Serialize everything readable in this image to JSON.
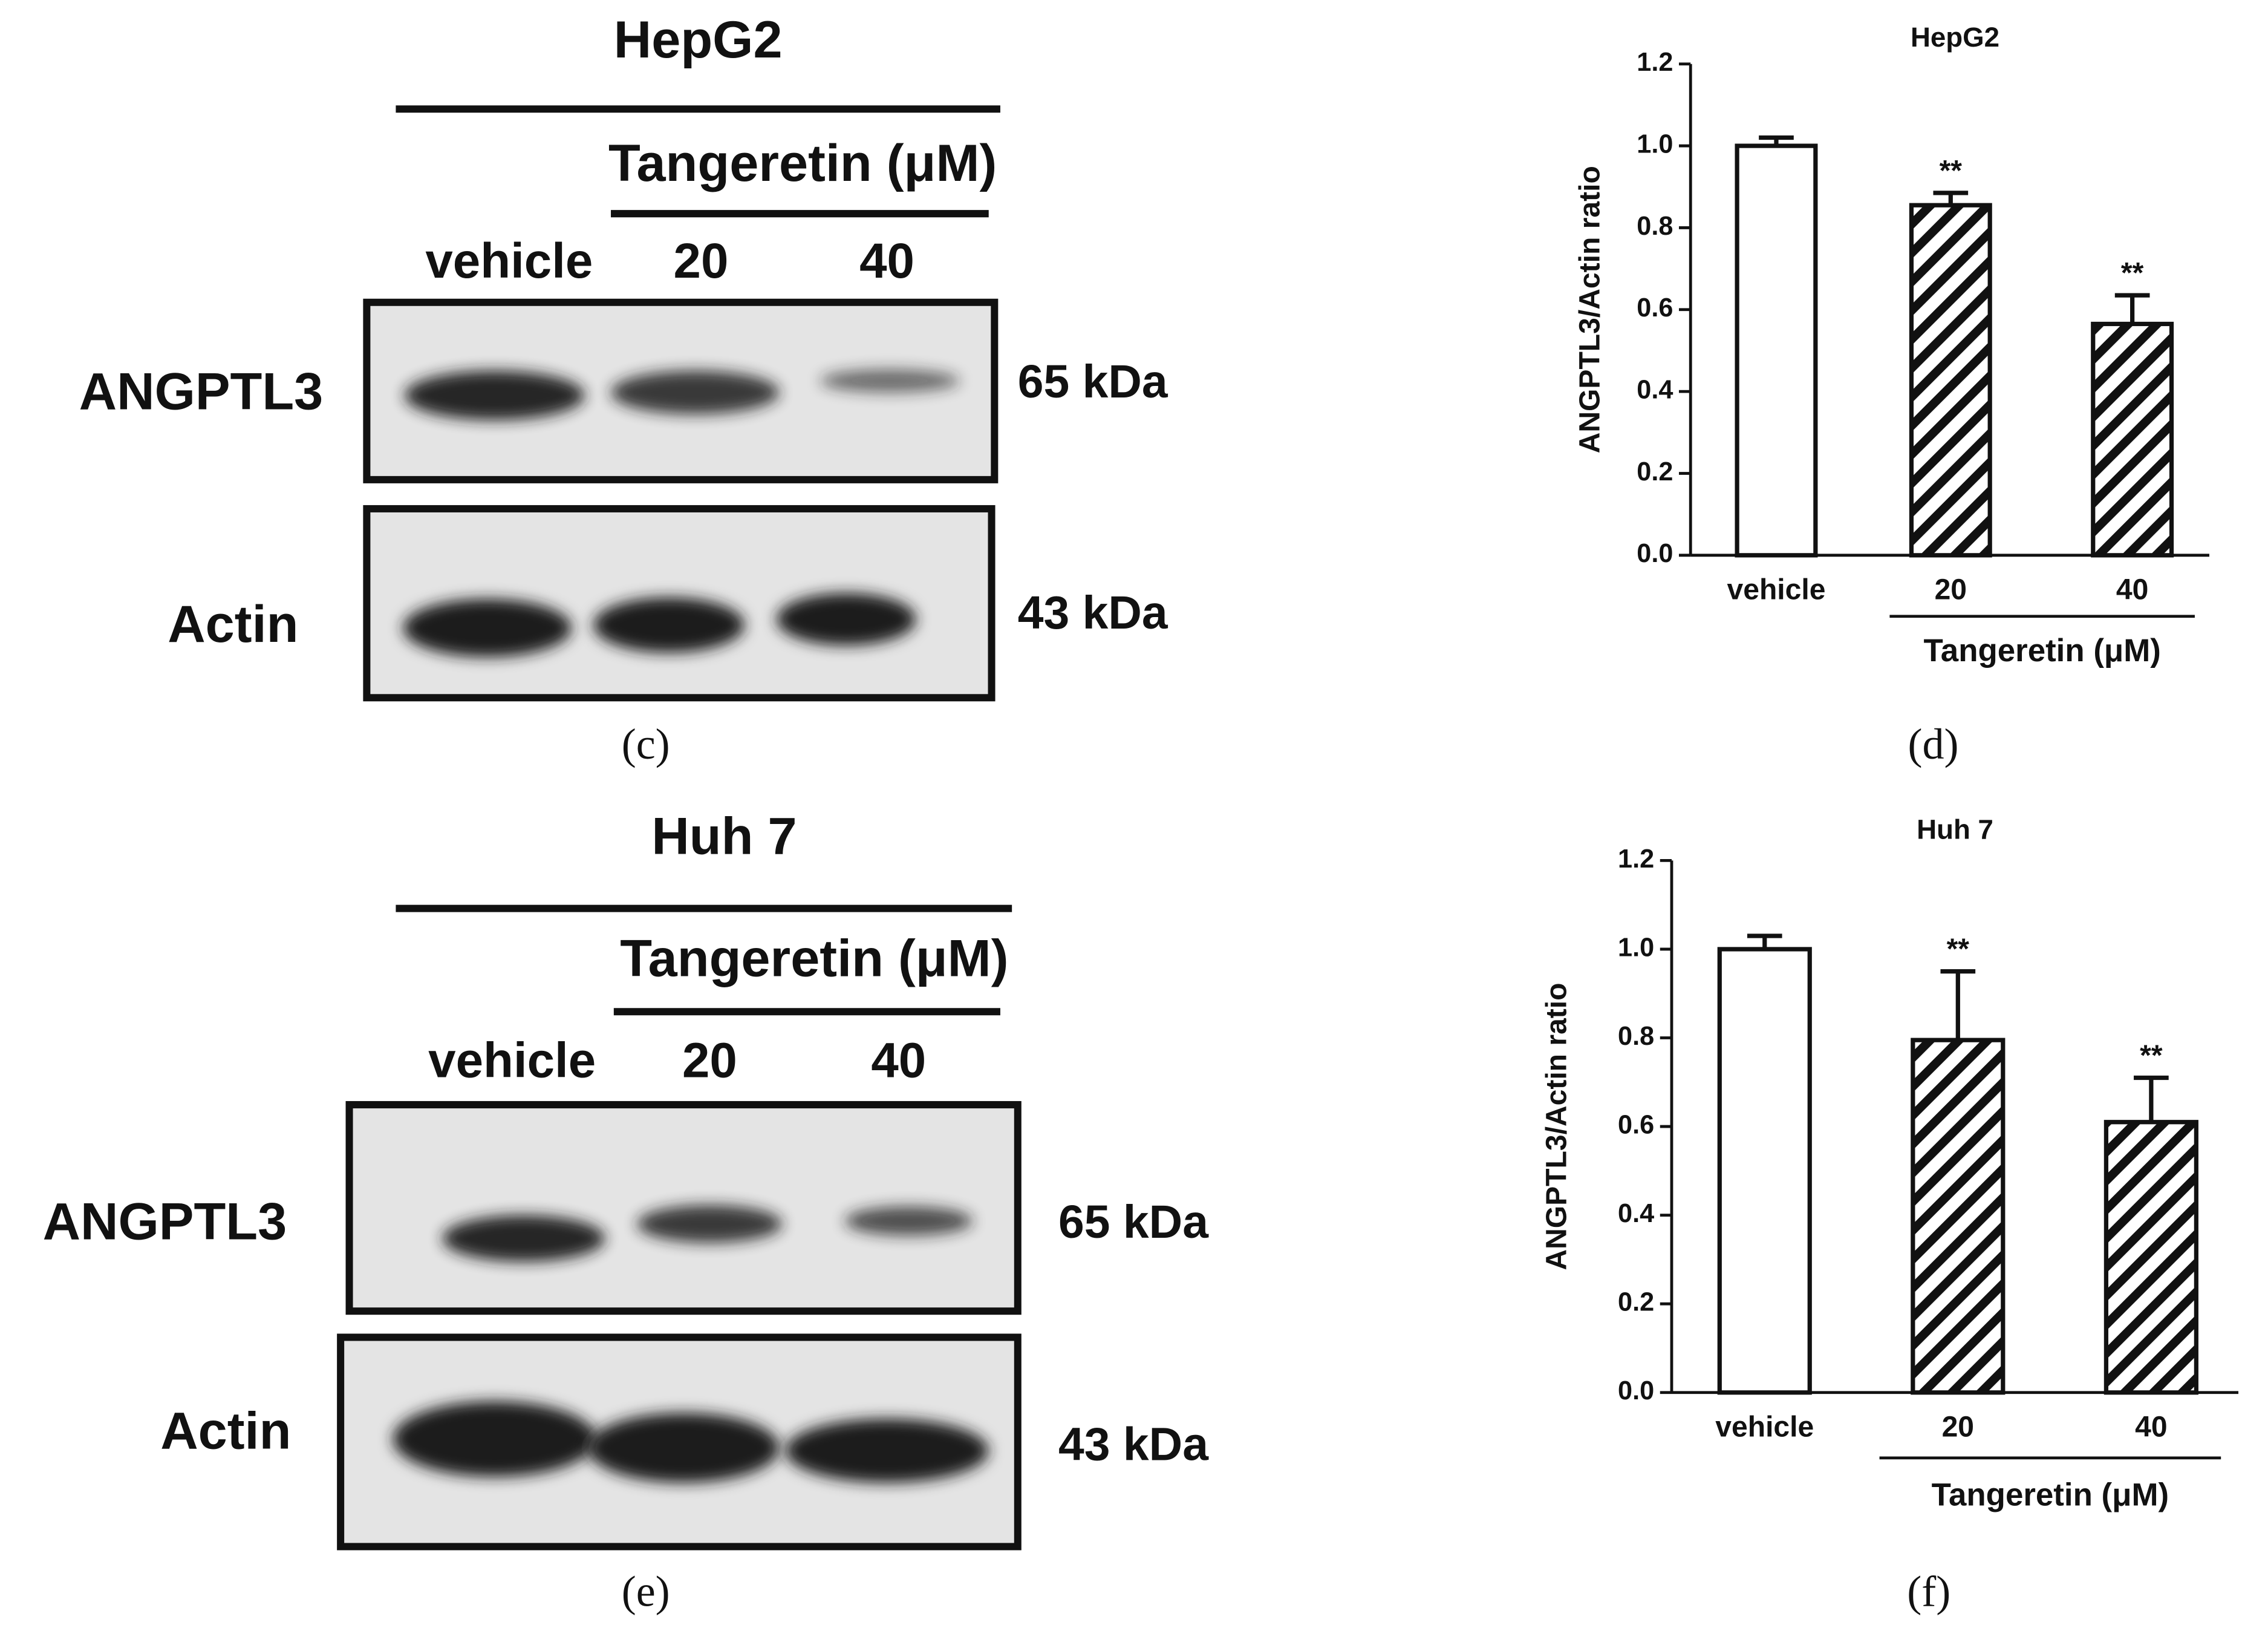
{
  "blots": [
    {
      "title": "HepG2",
      "treatment": "Tangeretin (μM)",
      "lanes": [
        "vehicle",
        "20",
        "40"
      ],
      "bands": [
        {
          "label": "ANGPTL3",
          "size": "65 kDa"
        },
        {
          "label": "Actin",
          "size": "43 kDa"
        }
      ],
      "caption": "(c)"
    },
    {
      "title": "Huh 7",
      "treatment": "Tangeretin (μM)",
      "lanes": [
        "vehicle",
        "20",
        "40"
      ],
      "bands": [
        {
          "label": "ANGPTL3",
          "size": "65 kDa"
        },
        {
          "label": "Actin",
          "size": "43 kDa"
        }
      ],
      "caption": "(e)"
    }
  ],
  "chart_data": [
    {
      "type": "bar",
      "title": "HepG2",
      "ylabel": "ANGPTL3/Actin ratio",
      "categories": [
        "vehicle",
        "20",
        "40"
      ],
      "values": [
        1.0,
        0.855,
        0.565
      ],
      "errors": [
        0.02,
        0.03,
        0.07
      ],
      "significance": [
        null,
        "**",
        "**"
      ],
      "hatched": [
        false,
        true,
        true
      ],
      "group_label": "Tangeretin (μM)",
      "ylim": [
        0,
        1.2
      ],
      "yticks": [
        {
          "value": 0,
          "label": "0.0"
        },
        0.2,
        0.4,
        0.6,
        0.8,
        {
          "value": 1,
          "label": "1.0"
        },
        1.2
      ],
      "caption": "(d)"
    },
    {
      "type": "bar",
      "title": "Huh 7",
      "ylabel": "ANGPTL3/Actin ratio",
      "categories": [
        "vehicle",
        "20",
        "40"
      ],
      "values": [
        1.0,
        0.795,
        0.61
      ],
      "errors": [
        0.03,
        0.155,
        0.1
      ],
      "significance": [
        null,
        "**",
        "**"
      ],
      "hatched": [
        false,
        true,
        true
      ],
      "group_label": "Tangeretin (μM)",
      "ylim": [
        0,
        1.2
      ],
      "yticks": [
        {
          "value": 0,
          "label": "0.0"
        },
        0.2,
        0.4,
        0.6,
        0.8,
        {
          "value": 1,
          "label": "1.0"
        },
        1.2
      ],
      "caption": "(f)"
    }
  ]
}
